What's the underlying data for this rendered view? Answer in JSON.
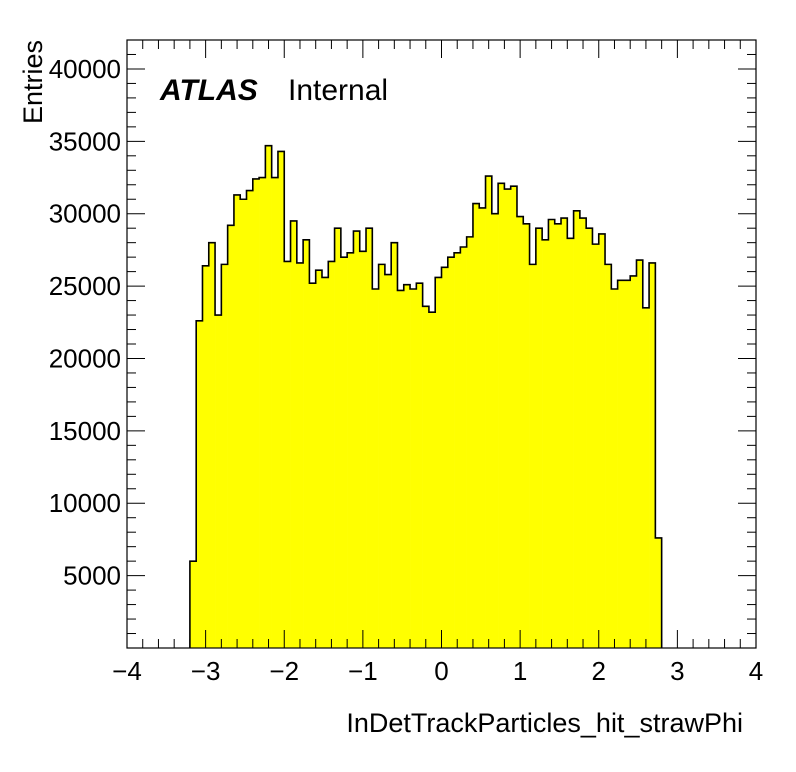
{
  "chart_data": {
    "type": "bar",
    "histogram": true,
    "fill_color": "#ffff00",
    "line_color": "#000000",
    "xlabel": "InDetTrackParticles_hit_strawPhi",
    "ylabel": "Entries",
    "xlim": [
      -4,
      4
    ],
    "ylim": [
      0,
      42000
    ],
    "grid": false,
    "xticks": [
      -4,
      -3,
      -2,
      -1,
      0,
      1,
      2,
      3,
      4
    ],
    "xtick_labels": [
      "−4",
      "−3",
      "−2",
      "−1",
      "0",
      "1",
      "2",
      "3",
      "4"
    ],
    "yticks": [
      5000,
      10000,
      15000,
      20000,
      25000,
      30000,
      35000,
      40000
    ],
    "ytick_labels": [
      "5000",
      "10000",
      "15000",
      "20000",
      "25000",
      "30000",
      "35000",
      "40000"
    ],
    "bin_start": -3.2,
    "bin_width": 0.08,
    "values": [
      6000,
      22600,
      26400,
      28000,
      23000,
      26500,
      29200,
      31300,
      31000,
      31600,
      32400,
      32500,
      34700,
      32500,
      34300,
      26700,
      29500,
      26600,
      28200,
      25200,
      26100,
      25600,
      26700,
      29000,
      27000,
      27300,
      28800,
      27400,
      29000,
      24800,
      26500,
      25800,
      28000,
      24700,
      25100,
      24800,
      25200,
      23600,
      23200,
      25600,
      26300,
      27000,
      27300,
      27700,
      28400,
      30700,
      30400,
      32600,
      30000,
      32100,
      31700,
      31900,
      29800,
      29300,
      26500,
      29000,
      28200,
      29600,
      29300,
      29700,
      28300,
      30200,
      29700,
      29000,
      27900,
      28600,
      26500,
      24800,
      25400,
      25400,
      25700,
      26800,
      23500,
      26600,
      7600
    ],
    "annotations": {
      "experiment": "ATLAS",
      "status": "Internal"
    }
  }
}
